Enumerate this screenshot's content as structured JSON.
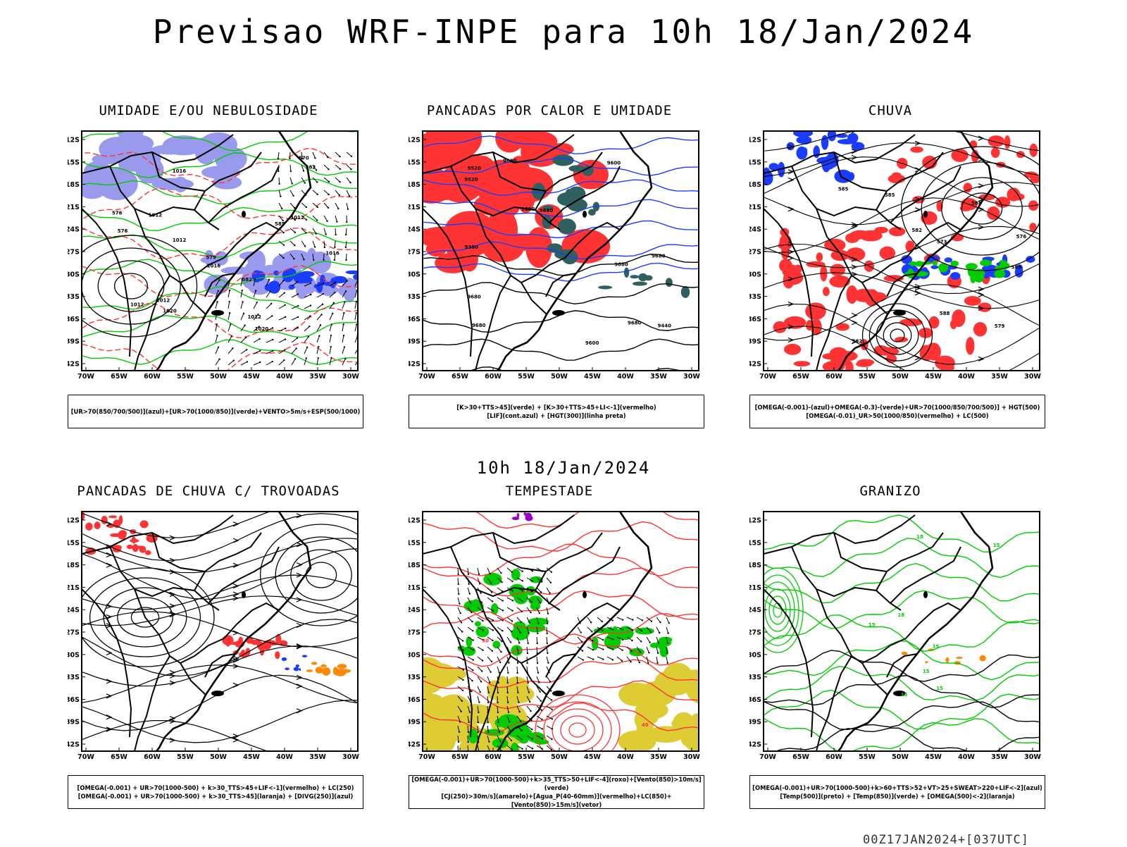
{
  "title": "Previsao WRF-INPE  para 10h 18/Jan/2024",
  "mid_title": "10h 18/Jan/2024",
  "footer": "00Z17JAN2024+[037UTC]",
  "lat_labels": [
    "12S",
    "15S",
    "18S",
    "21S",
    "24S",
    "27S",
    "30S",
    "33S",
    "36S",
    "39S",
    "42S"
  ],
  "lon_labels": [
    "70W",
    "65W",
    "60W",
    "55W",
    "50W",
    "45W",
    "40W",
    "35W",
    "30W"
  ],
  "panels": [
    {
      "title": "UMIDADE E/OU NEBULOSIDADE",
      "legend": [
        "[UR>70(850/700/500)](azul)+[UR>70(1000/850)](verde)+VENTO>5m/s+ESP(500/1000)"
      ],
      "contour_labels": [
        "1020",
        "1016",
        "1012",
        "1012",
        "1012",
        "1012",
        "1016",
        "1012",
        "1016",
        "1020",
        "1012",
        "576",
        "579",
        "582",
        "585",
        "570",
        "576",
        "582"
      ]
    },
    {
      "title": "PANCADAS POR CALOR E UMIDADE",
      "legend": [
        "[K>30+TTS>45](verde) + [K>30+TTS>45+LI<-1](vermelho)",
        "[LIF](cont.azul) + [HGT(300)](linha preta)"
      ],
      "contour_labels": [
        "9680",
        "9680",
        "9680",
        "9680",
        "9680",
        "9680",
        "9680",
        "9600",
        "9600",
        "9600",
        "9520",
        "9360",
        "9520",
        "9440"
      ]
    },
    {
      "title": "CHUVA",
      "legend": [
        "[OMEGA(-0.001)-(azul)+OMEGA(-0.3)-(verde)+UR>70(1000/850/700/500)] + HGT(500)",
        "[OMEGA(-0.01)_UR>50(1000/850)(vermelho) + LC(500)"
      ],
      "contour_labels": [
        "588",
        "588",
        "588",
        "585",
        "585",
        "582",
        "582",
        "579",
        "576",
        "573"
      ]
    },
    {
      "title": "PANCADAS DE CHUVA C/ TROVOADAS",
      "legend": [
        "[OMEGA(-0.001) + UR>70(1000-500) + k>30_TTS>45+LIF<-1](vermelho) + LC(250)",
        "[OMEGA(-0.001) + UR>70(1000-500) + k>30_TTS>45](laranja) + [DIVG(250)](azul)"
      ]
    },
    {
      "title": "TEMPESTADE",
      "legend": [
        "[OMEGA(-0.001)+UR>70(1000-500)+k>35_TTS>50+LIF<-4](roxo)+[Vento(850)>10m/s](verde)",
        "[CJ(250)>30m/s](amarelo)+[Agua_P(40-60mm)](vermelho)+LC(850)+[Vento(850)>15m/s](vetor)"
      ],
      "contour_labels": [
        "40",
        "30"
      ]
    },
    {
      "title": "GRANIZO",
      "legend": [
        "[OMEGA(-0.001)+UR>70(1000-500)+k>60+TTS>52+VT>25+SWEAT>220+LIF<-2](azul)",
        "[Temp(500)](preto) + [Temp(850)](verde) + [OMEGA(500)<-2](laranja)"
      ],
      "contour_labels": [
        "18",
        "18",
        "15",
        "15",
        "15",
        "15",
        "15",
        "15"
      ]
    }
  ],
  "colors": {
    "green": "#00cc00",
    "red": "#ff3333",
    "blue": "#1a3cff",
    "lavender": "#9999ee",
    "teal": "#2f5f5f",
    "yellow": "#ddcc33",
    "orange": "#ff8800",
    "purple": "#9900cc"
  }
}
